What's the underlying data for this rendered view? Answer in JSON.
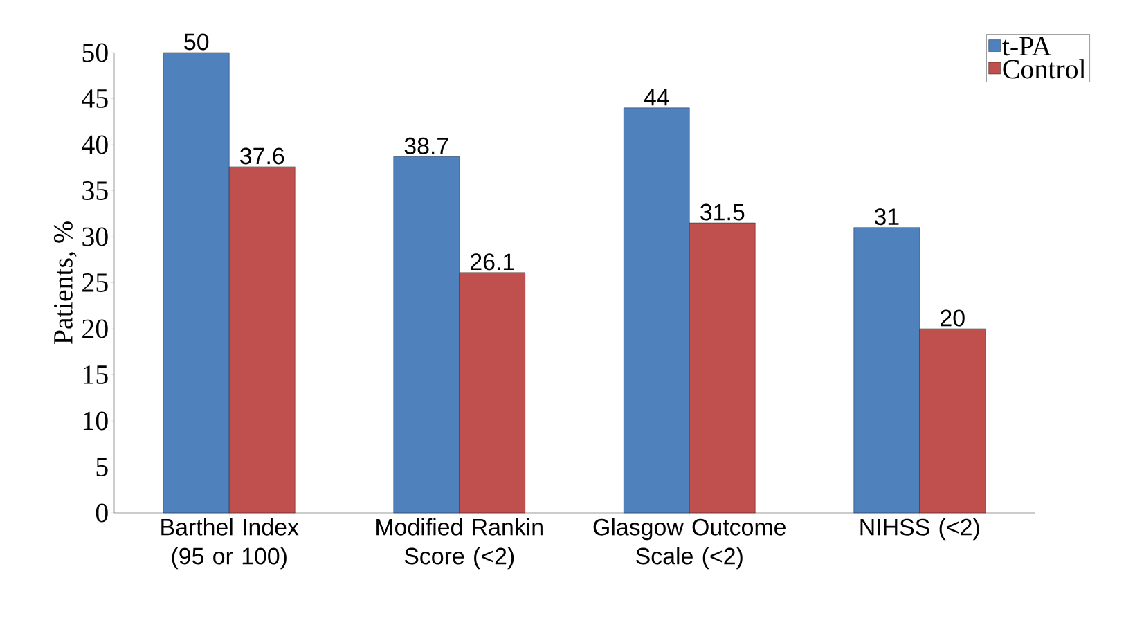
{
  "chart_data": {
    "type": "bar",
    "ylabel": "Patients, %",
    "categories": [
      "Barthel Index (95 or 100)",
      "Modified Rankin Score (<2)",
      "Glasgow Outcome Scale (<2)",
      "NIHSS (<2)"
    ],
    "series": [
      {
        "name": "t-PA",
        "color": "#4f81bd",
        "values": [
          50,
          38.7,
          44,
          31
        ]
      },
      {
        "name": "Control",
        "color": "#c0504d",
        "values": [
          37.6,
          26.1,
          31.5,
          20
        ]
      }
    ],
    "ylim": [
      0,
      50
    ],
    "yticks": [
      0,
      5,
      10,
      15,
      20,
      25,
      30,
      35,
      40,
      45,
      50
    ],
    "data_labels": true,
    "legend": "top right",
    "grid": false
  }
}
